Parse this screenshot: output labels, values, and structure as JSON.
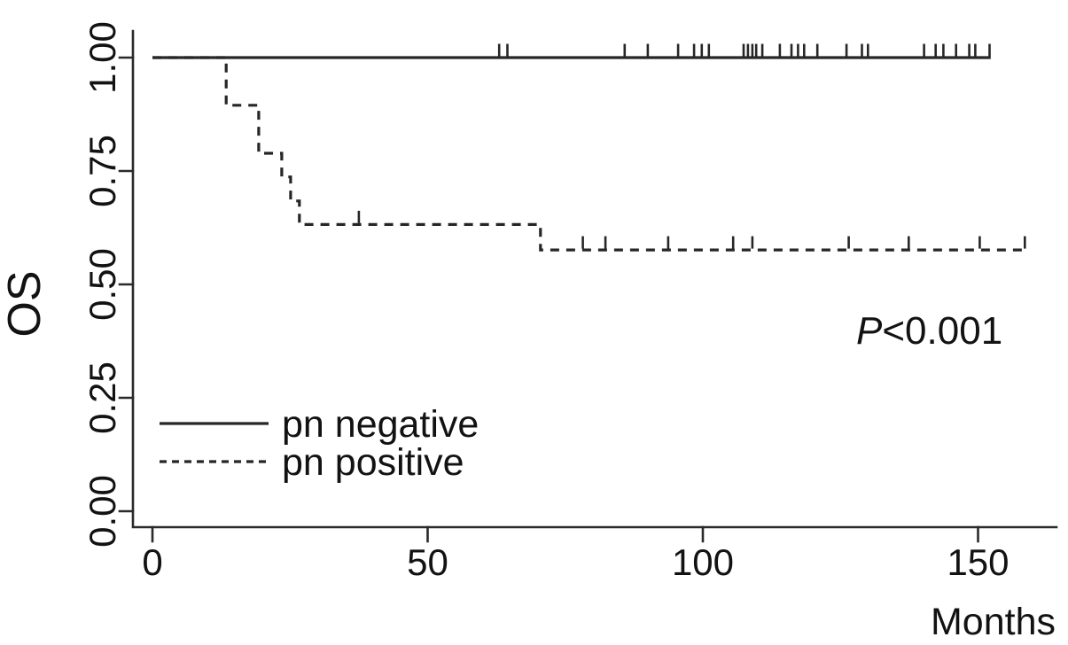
{
  "figure": {
    "background": "#ffffff",
    "text_color": "#121212",
    "line_color": "#262626"
  },
  "chart_data": {
    "type": "line",
    "subtype": "kaplan_meier_step",
    "title": "",
    "xlabel": "Months",
    "ylabel": "OS",
    "xticks": [
      0,
      50,
      100,
      150
    ],
    "yticks": [
      "0.00",
      "0.25",
      "0.50",
      "0.75",
      "1.00"
    ],
    "xlim": [
      0,
      164
    ],
    "ylim": [
      0,
      1.0
    ],
    "grid": false,
    "legend_position": "inside-lower-left",
    "annotation": {
      "p": "P",
      "rest": "<0.001"
    },
    "series": [
      {
        "name": "pn negative",
        "style": "solid",
        "points": [
          [
            0,
            1.0
          ],
          [
            152.3,
            1.0
          ]
        ],
        "censor_marks": [
          63,
          64.5,
          85.8,
          90,
          95.5,
          98.4,
          99.8,
          101.1,
          107.4,
          108.2,
          109.0,
          109.7,
          110.8,
          114,
          116.1,
          117.3,
          118.4,
          120.8,
          126.1,
          128.9,
          130,
          140.2,
          142.3,
          143.7,
          146,
          148.4,
          149.5,
          152.1
        ]
      },
      {
        "name": "pn positive",
        "style": "dashed",
        "points": [
          [
            0,
            1.0
          ],
          [
            13.4,
            1.0
          ],
          [
            13.4,
            0.895
          ],
          [
            19.3,
            0.895
          ],
          [
            19.3,
            0.789
          ],
          [
            23.5,
            0.789
          ],
          [
            23.5,
            0.737
          ],
          [
            25.1,
            0.737
          ],
          [
            25.1,
            0.684
          ],
          [
            26.7,
            0.684
          ],
          [
            26.7,
            0.632
          ],
          [
            70.5,
            0.632
          ],
          [
            70.5,
            0.576
          ],
          [
            158.5,
            0.576
          ]
        ],
        "censor_marks": [
          37.5,
          78.2,
          82.3,
          93.7,
          105.5,
          109.0,
          126.5,
          137.4,
          150.3,
          158.5
        ]
      }
    ]
  }
}
